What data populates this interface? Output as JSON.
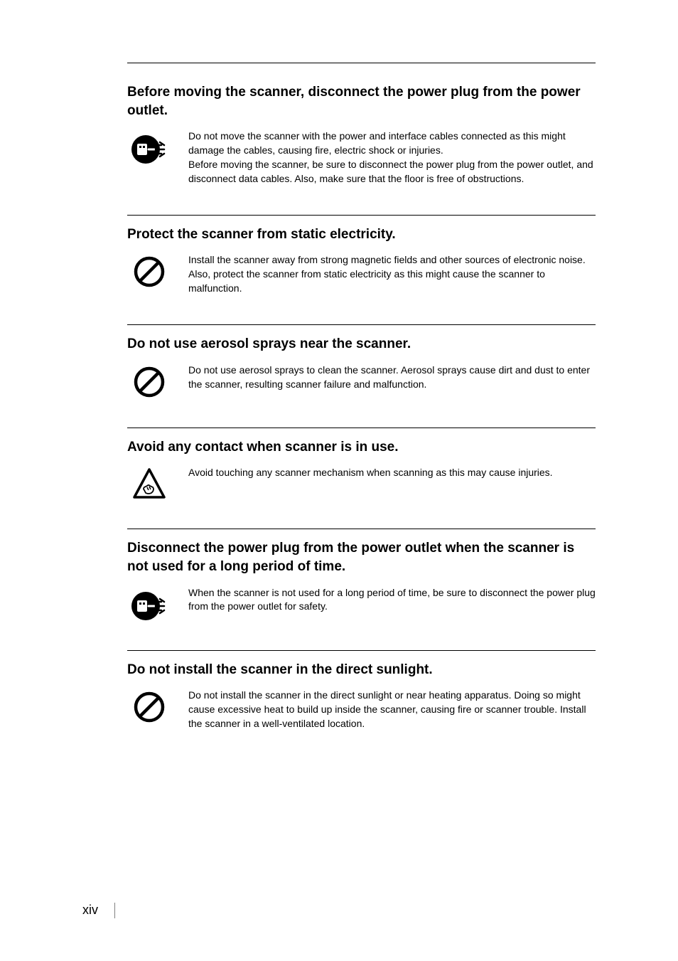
{
  "page": {
    "number": "xiv"
  },
  "sections": [
    {
      "title": "Before moving the scanner, disconnect the power plug from the power outlet.",
      "body": "Do not move the scanner with the power and interface cables connected as this might damage the cables, causing fire, electric shock or injuries.\nBefore moving the scanner, be sure to disconnect the power plug from the power outlet, and disconnect data cables. Also, make sure that the floor is free of obstructions.",
      "icon": "unplug",
      "icon_bg": "#000000",
      "icon_fg": "#ffffff"
    },
    {
      "title": "Protect the scanner from static electricity.",
      "body": "Install the scanner away from strong magnetic fields and other sources of electronic noise. Also, protect the scanner from static electricity as this might cause the scanner to malfunction.",
      "icon": "prohibit",
      "icon_stroke": "#000000"
    },
    {
      "title": "Do not use aerosol sprays near the scanner.",
      "body": "Do not use aerosol sprays to clean the scanner. Aerosol sprays cause dirt and dust to enter the scanner, resulting scanner failure and malfunction.",
      "icon": "prohibit",
      "icon_stroke": "#000000"
    },
    {
      "title": "Avoid any contact when scanner is in use.",
      "body": "Avoid touching any scanner mechanism when scanning as this may cause injuries.",
      "icon": "caution-hand",
      "icon_stroke": "#000000"
    },
    {
      "title": "Disconnect the power plug from the power outlet when the scanner is not used for a long period of time.",
      "body": "When the scanner is not used for a long period of time, be sure to disconnect the power plug from the power outlet for safety.",
      "icon": "unplug",
      "icon_bg": "#000000",
      "icon_fg": "#ffffff"
    },
    {
      "title": "Do not install the scanner in the direct sunlight.",
      "body": "Do not install the scanner in the direct sunlight or near heating apparatus. Doing so might cause excessive heat to build up inside the scanner, causing fire or scanner trouble. Install the scanner in a well-ventilated location.",
      "icon": "prohibit",
      "icon_stroke": "#000000"
    }
  ]
}
